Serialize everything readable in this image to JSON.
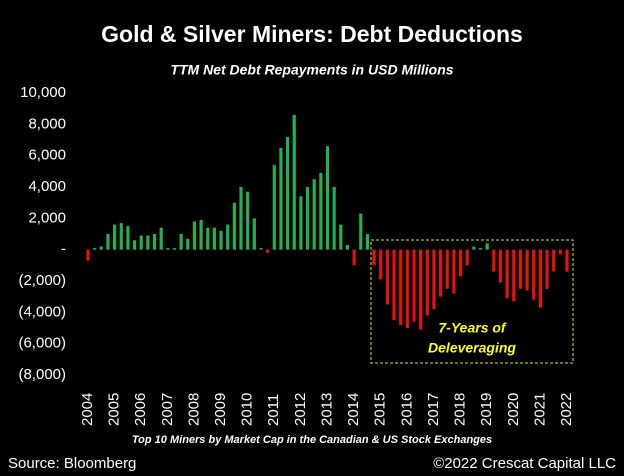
{
  "chart_data": {
    "type": "bar",
    "title": "Gold & Silver Miners: Debt Deductions",
    "subtitle": "TTM Net Debt Repayments in USD Millions",
    "annotation_lines": [
      "7-Years of",
      "Deleveraging"
    ],
    "footnote": "Top 10 Miners by Market Cap in the Canadian & US Stock Exchanges",
    "source": "Source: Bloomberg",
    "credit": "©2022 Crescat Capital LLC",
    "positive_color": "#22b14c",
    "negative_color": "#e8120c",
    "x": [
      2004,
      2004.25,
      2004.5,
      2004.75,
      2005,
      2005.25,
      2005.5,
      2005.75,
      2006,
      2006.25,
      2006.5,
      2006.75,
      2007,
      2007.25,
      2007.5,
      2007.75,
      2008,
      2008.25,
      2008.5,
      2008.75,
      2009,
      2009.25,
      2009.5,
      2009.75,
      2010,
      2010.25,
      2010.5,
      2010.75,
      2011,
      2011.25,
      2011.5,
      2011.75,
      2012,
      2012.25,
      2012.5,
      2012.75,
      2013,
      2013.25,
      2013.5,
      2013.75,
      2014,
      2014.25,
      2014.5,
      2014.75,
      2015,
      2015.25,
      2015.5,
      2015.75,
      2016,
      2016.25,
      2016.5,
      2016.75,
      2017,
      2017.25,
      2017.5,
      2017.75,
      2018,
      2018.25,
      2018.5,
      2018.75,
      2019,
      2019.25,
      2019.5,
      2019.75,
      2020,
      2020.25,
      2020.5,
      2020.75,
      2021,
      2021.25,
      2021.5,
      2021.75,
      2022
    ],
    "values": [
      -700,
      100,
      200,
      1000,
      1600,
      1700,
      1500,
      600,
      900,
      900,
      1000,
      1400,
      100,
      100,
      1000,
      700,
      1800,
      1900,
      1400,
      1400,
      1200,
      1600,
      3000,
      4000,
      3700,
      2000,
      100,
      -200,
      5400,
      6500,
      7200,
      8600,
      3400,
      4000,
      4500,
      4900,
      6600,
      4000,
      1600,
      300,
      -1000,
      2300,
      1000,
      -1000,
      -1900,
      -3500,
      -4500,
      -4800,
      -5000,
      -4600,
      -5100,
      -4200,
      -3800,
      -3000,
      -2500,
      -2800,
      -1700,
      -1000,
      200,
      100,
      400,
      -1400,
      -2100,
      -3100,
      -3300,
      -2500,
      -2600,
      -3200,
      -3700,
      -2500,
      -1400,
      -300,
      -1400
    ],
    "xlim": [
      2003.7,
      2022.3
    ],
    "xticks": [
      2004,
      2005,
      2006,
      2007,
      2008,
      2009,
      2010,
      2011,
      2012,
      2013,
      2014,
      2015,
      2016,
      2017,
      2018,
      2019,
      2020,
      2021,
      2022
    ],
    "ylim": [
      -8000,
      10000
    ],
    "yticks": [
      {
        "value": 10000,
        "label": "10,000"
      },
      {
        "value": 8000,
        "label": "8,000"
      },
      {
        "value": 6000,
        "label": "6,000"
      },
      {
        "value": 4000,
        "label": "4,000"
      },
      {
        "value": 2000,
        "label": "2,000"
      },
      {
        "value": 0,
        "label": "-"
      },
      {
        "value": -2000,
        "label": "(2,000)"
      },
      {
        "value": -4000,
        "label": "(4,000)"
      },
      {
        "value": -6000,
        "label": "(6,000)"
      },
      {
        "value": -8000,
        "label": "(8,000)"
      }
    ]
  }
}
